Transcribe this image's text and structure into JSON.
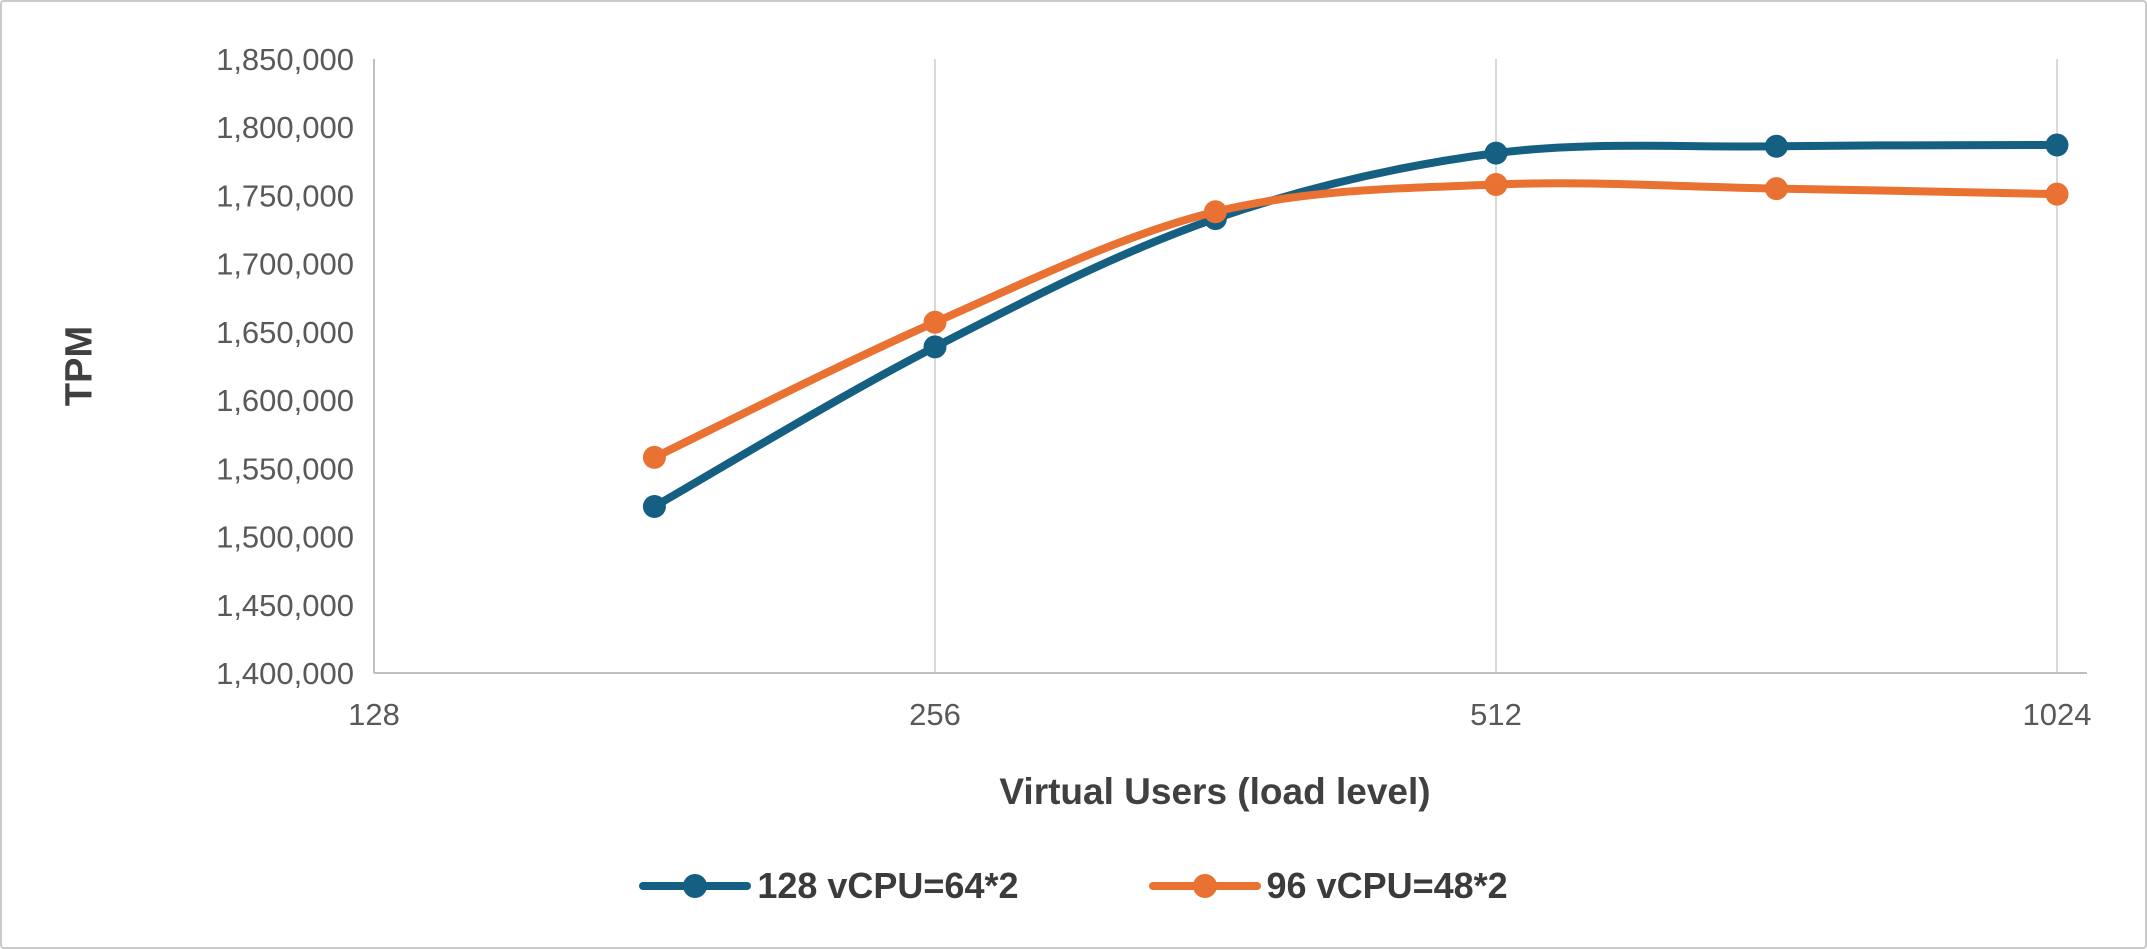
{
  "chart_data": {
    "type": "line",
    "title": "",
    "xlabel": "Virtual Users (load level)",
    "ylabel": "TPM",
    "x_scale": "log2",
    "xlim": [
      128,
      1024
    ],
    "ylim": [
      1400000,
      1850000
    ],
    "grid": "vertical-only",
    "legend_position": "bottom",
    "x": [
      181,
      256,
      362,
      512,
      724,
      1024
    ],
    "x_tick_values": [
      128,
      256,
      512,
      1024
    ],
    "x_tick_labels": [
      "128",
      "256",
      "512",
      "1024"
    ],
    "y_tick_labels": [
      "1,400,000",
      "1,450,000",
      "1,500,000",
      "1,550,000",
      "1,600,000",
      "1,650,000",
      "1,700,000",
      "1,750,000",
      "1,800,000",
      "1,850,000"
    ],
    "series": [
      {
        "name": "128 vCPU=64*2",
        "color": "#156082",
        "values": [
          1522000,
          1639000,
          1733000,
          1781000,
          1786000,
          1787000
        ]
      },
      {
        "name": "96 vCPU=48*2",
        "color": "#E97132",
        "values": [
          1558000,
          1657000,
          1738000,
          1758000,
          1755000,
          1751000
        ]
      }
    ]
  },
  "colors": {
    "background": "#FFFFFF",
    "border": "#C9C9C9",
    "gridline": "#D9D9D9",
    "axis_line": "#BFBFBF",
    "tick_label": "#595959",
    "axis_title": "#404040",
    "legend_text": "#3B3B3B"
  }
}
